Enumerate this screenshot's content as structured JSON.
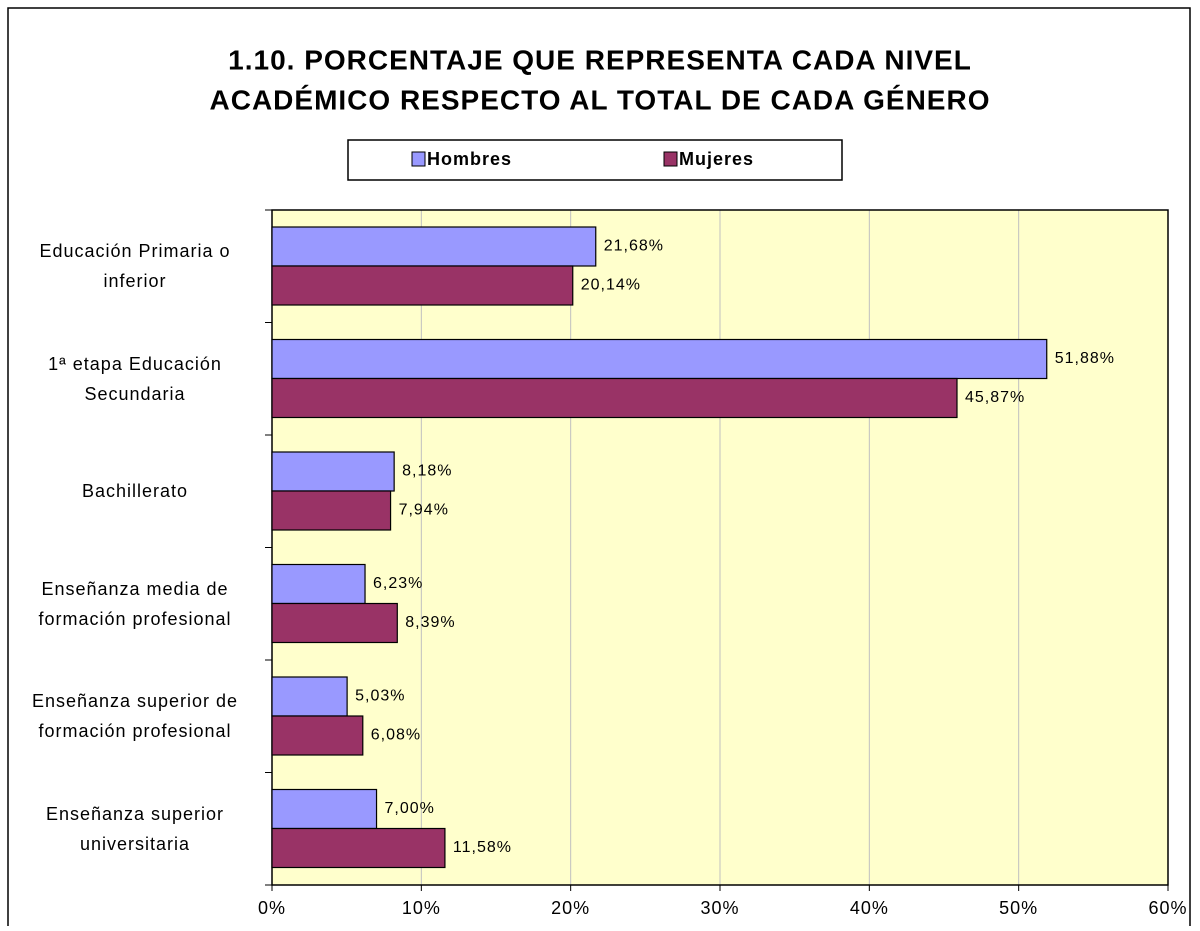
{
  "chart_data": {
    "type": "bar",
    "orientation": "horizontal",
    "title": [
      "1.10. PORCENTAJE QUE REPRESENTA CADA NIVEL",
      "ACADÉMICO RESPECTO AL TOTAL DE CADA GÉNERO"
    ],
    "categories": [
      "Educación Primaria o inferior",
      "1ª etapa Educación Secundaria",
      "Bachillerato",
      "Enseñanza media de formación profesional",
      "Enseñanza superior de formación profesional",
      "Enseñanza superior universitaria"
    ],
    "series": [
      {
        "name": "Hombres",
        "color": "#9999ff",
        "values": [
          21.68,
          51.88,
          8.18,
          6.23,
          5.03,
          7.0
        ],
        "value_labels": [
          "21,68%",
          "51,88%",
          "8,18%",
          "6,23%",
          "5,03%",
          "7,00%"
        ]
      },
      {
        "name": "Mujeres",
        "color": "#993366",
        "values": [
          20.14,
          45.87,
          7.94,
          8.39,
          6.08,
          11.58
        ],
        "value_labels": [
          "20,14%",
          "45,87%",
          "7,94%",
          "8,39%",
          "6,08%",
          "11,58%"
        ]
      }
    ],
    "xlim": [
      0,
      60
    ],
    "xticks": [
      {
        "value": 0,
        "label": "0%"
      },
      {
        "value": 10,
        "label": "10%"
      },
      {
        "value": 20,
        "label": "20%"
      },
      {
        "value": 30,
        "label": "30%"
      },
      {
        "value": 40,
        "label": "40%"
      },
      {
        "value": 50,
        "label": "50%"
      },
      {
        "value": 60,
        "label": "60%"
      }
    ],
    "grid": true,
    "plot_background": "#ffffcc",
    "legend_position": "top"
  }
}
